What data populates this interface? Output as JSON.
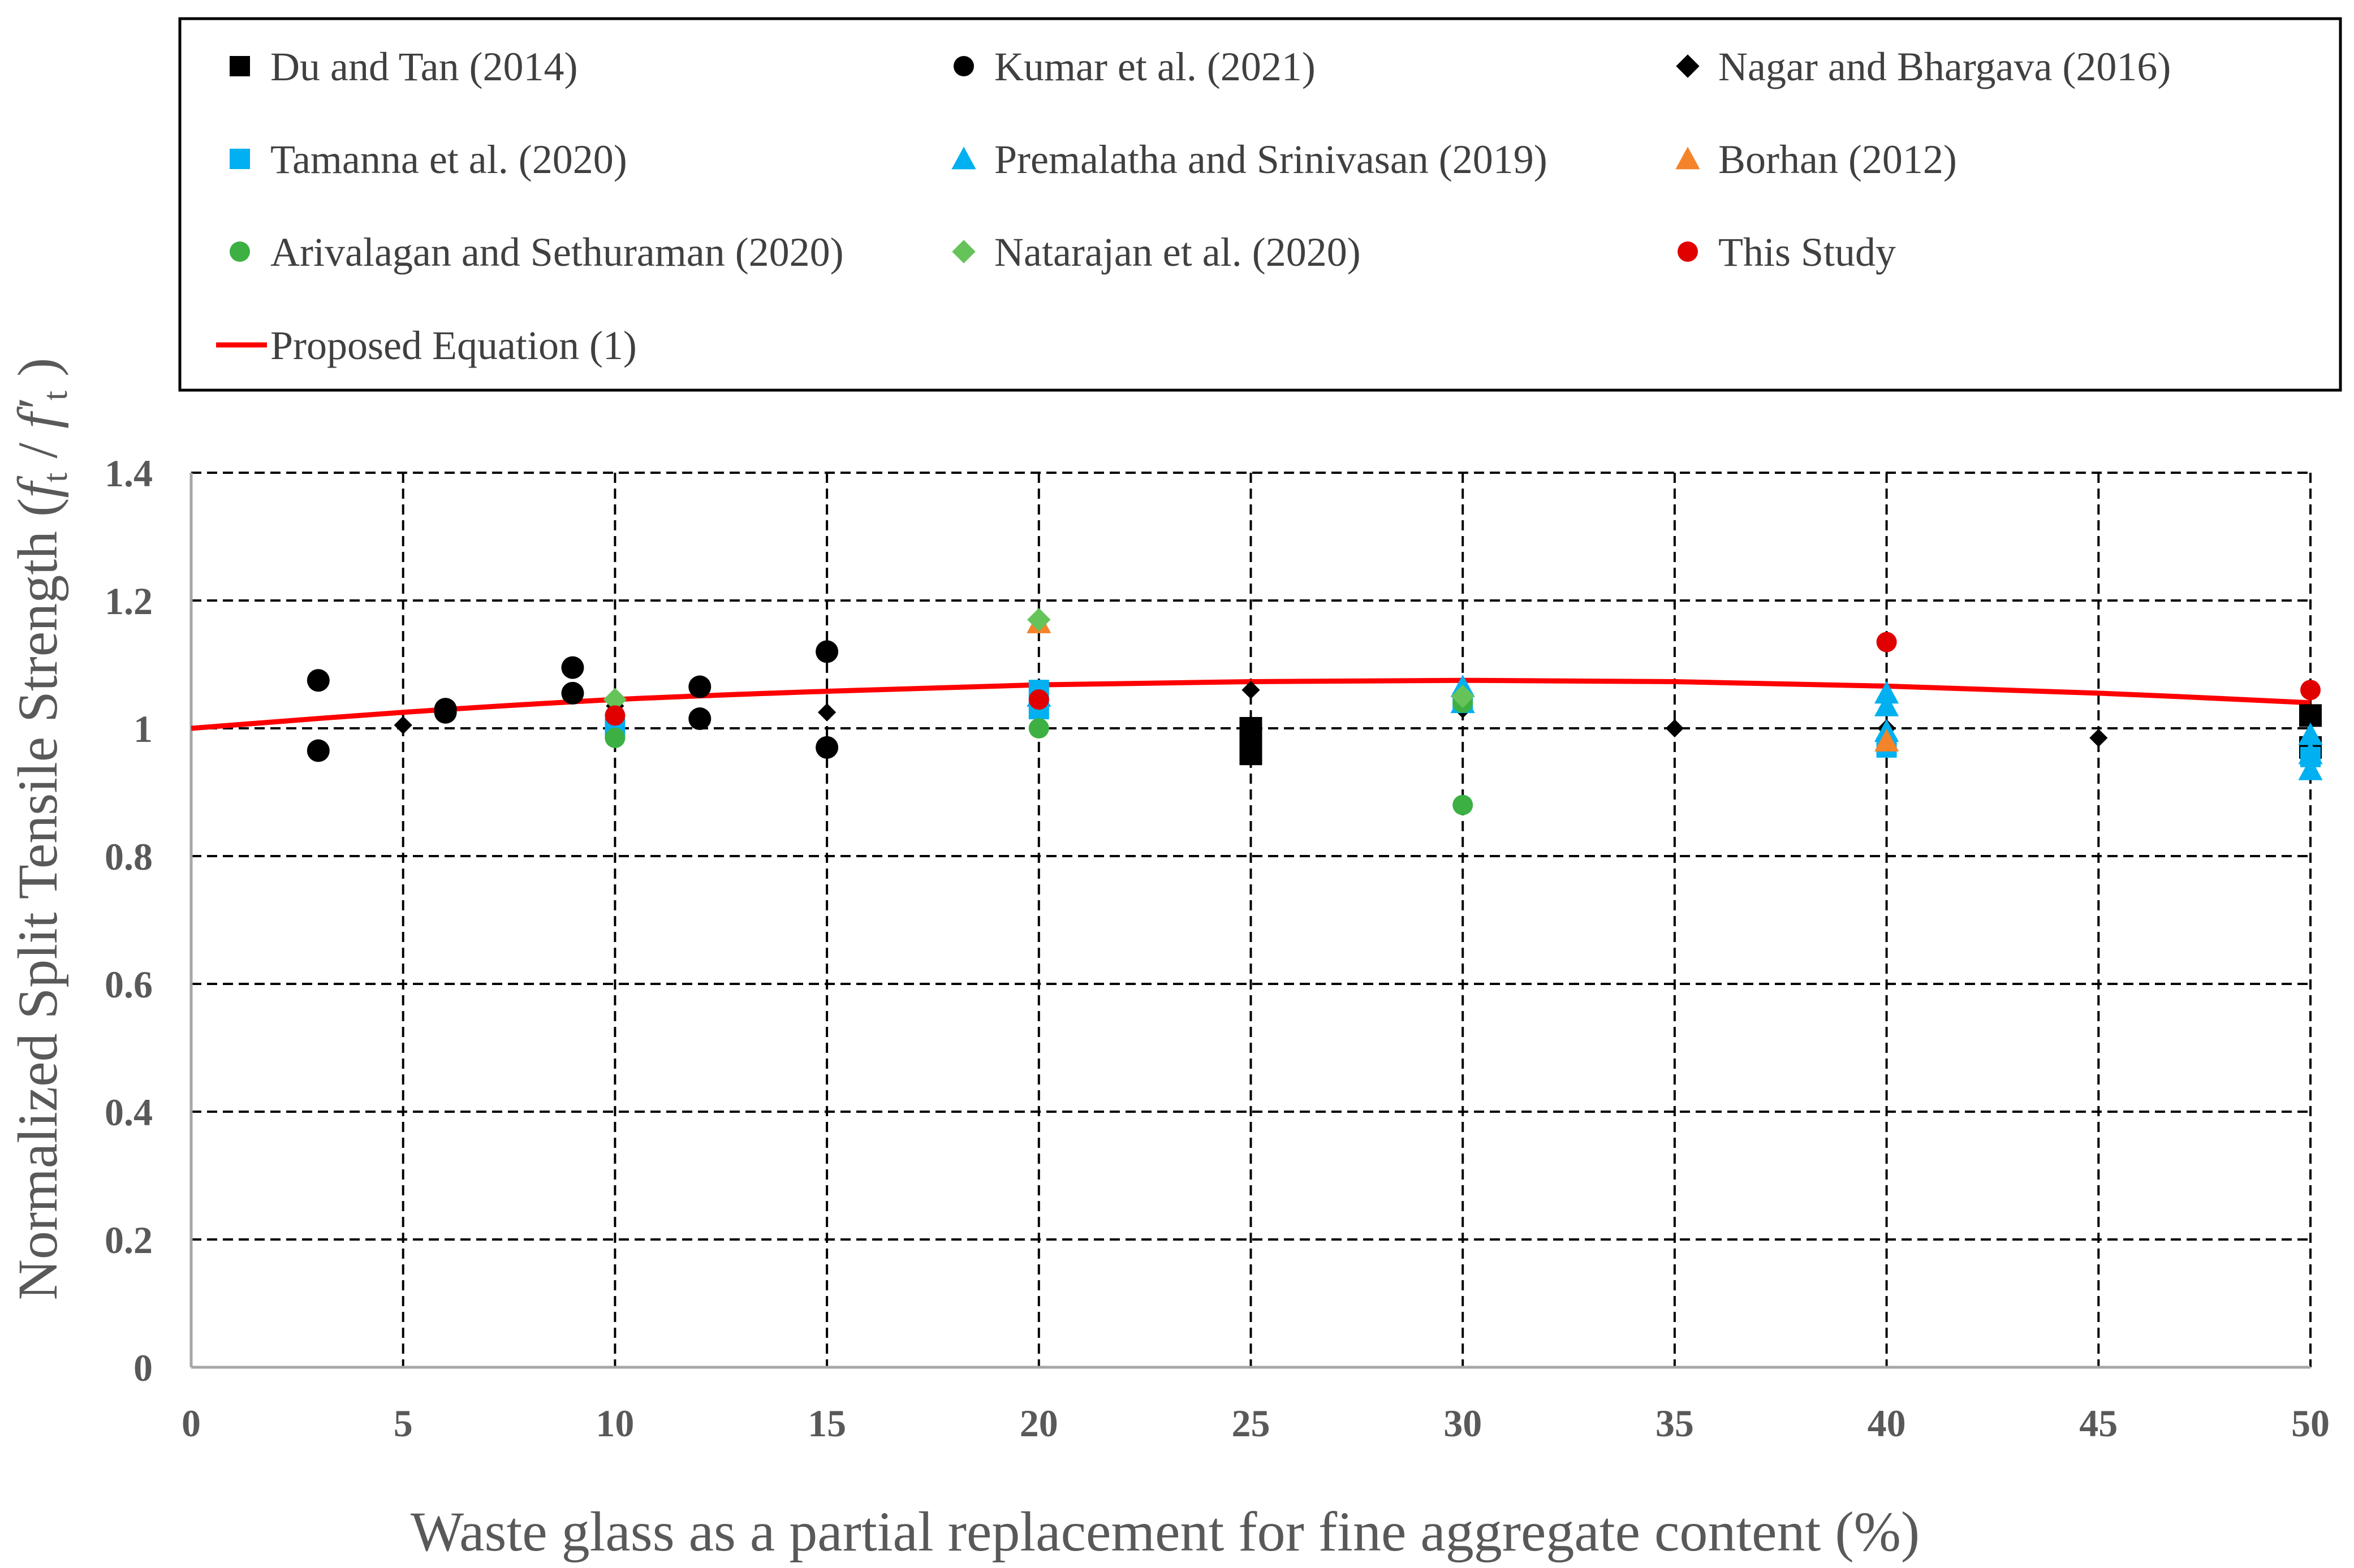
{
  "chart_data": {
    "type": "scatter",
    "xlabel": "Waste glass as a partial replacement for fine aggregate content (%)",
    "ylabel_main": "Normalized Split Tensile Strength (",
    "ylabel_f1": "f",
    "ylabel_sub1": "t",
    "ylabel_slash": " / ",
    "ylabel_f2": "f′",
    "ylabel_sub2": "t",
    "ylabel_close": " )",
    "xlim": [
      0,
      50
    ],
    "ylim": [
      0,
      1.4
    ],
    "x_ticks": [
      0,
      5,
      10,
      15,
      20,
      25,
      30,
      35,
      40,
      45,
      50
    ],
    "y_ticks": [
      0,
      0.2,
      0.4,
      0.6,
      0.8,
      1,
      1.2,
      1.4
    ],
    "x_tick_labels": [
      "0",
      "5",
      "10",
      "15",
      "20",
      "25",
      "30",
      "35",
      "40",
      "45",
      "50"
    ],
    "y_tick_labels": [
      "0",
      "0.2",
      "0.4",
      "0.6",
      "0.8",
      "1",
      "1.2",
      "1.4"
    ],
    "grid": "dashed",
    "legend_position": "top",
    "series": [
      {
        "name": "Du and Tan (2014)",
        "marker": "square",
        "color": "#000000",
        "size": "large",
        "points": [
          [
            25,
            1.0
          ],
          [
            25,
            0.98
          ],
          [
            25,
            0.96
          ],
          [
            50,
            1.02
          ],
          [
            50,
            0.97
          ]
        ]
      },
      {
        "name": "Kumar et al. (2021)",
        "marker": "circle",
        "color": "#000000",
        "size": "large",
        "points": [
          [
            3,
            1.075
          ],
          [
            3,
            0.965
          ],
          [
            6,
            1.03
          ],
          [
            6,
            1.025
          ],
          [
            9,
            1.095
          ],
          [
            9,
            1.055
          ],
          [
            12,
            1.065
          ],
          [
            12,
            1.015
          ],
          [
            15,
            1.12
          ],
          [
            15,
            0.97
          ]
        ]
      },
      {
        "name": "Nagar and Bhargava (2016)",
        "marker": "diamond",
        "color": "#000000",
        "size": "small",
        "points": [
          [
            5,
            1.005
          ],
          [
            10,
            1.035
          ],
          [
            15,
            1.025
          ],
          [
            20,
            1.045
          ],
          [
            25,
            1.06
          ],
          [
            30,
            1.03
          ],
          [
            35,
            1.0
          ],
          [
            40,
            1.0
          ],
          [
            45,
            0.985
          ]
        ]
      },
      {
        "name": "Tamanna et al. (2020)",
        "marker": "square",
        "color": "#00B0F0",
        "size": "medium",
        "points": [
          [
            10,
            1.0
          ],
          [
            20,
            1.06
          ],
          [
            20,
            1.03
          ],
          [
            30,
            1.04
          ],
          [
            40,
            0.97
          ],
          [
            50,
            0.955
          ]
        ]
      },
      {
        "name": "Premalatha and Srinivasan (2019)",
        "marker": "triangle",
        "color": "#00B0F0",
        "size": "medium",
        "points": [
          [
            20,
            1.05
          ],
          [
            30,
            1.065
          ],
          [
            30,
            1.04
          ],
          [
            40,
            1.055
          ],
          [
            40,
            1.035
          ],
          [
            40,
            0.995
          ],
          [
            50,
            0.99
          ],
          [
            50,
            0.96
          ],
          [
            50,
            0.935
          ]
        ]
      },
      {
        "name": "Borhan (2012)",
        "marker": "triangle",
        "color": "#F4832A",
        "size": "medium",
        "points": [
          [
            20,
            1.165
          ],
          [
            40,
            0.98
          ]
        ]
      },
      {
        "name": "Arivalagan and Sethuraman (2020)",
        "marker": "circle",
        "color": "#3CB043",
        "size": "medium",
        "points": [
          [
            10,
            0.985
          ],
          [
            20,
            1.0
          ],
          [
            30,
            0.88
          ],
          [
            30,
            1.04
          ]
        ]
      },
      {
        "name": "Natarajan et al. (2020)",
        "marker": "diamond",
        "color": "#66C35A",
        "size": "medium",
        "points": [
          [
            10,
            1.045
          ],
          [
            20,
            1.17
          ],
          [
            30,
            1.05
          ]
        ]
      },
      {
        "name": "This Study",
        "marker": "circle",
        "color": "#E00000",
        "size": "medium",
        "points": [
          [
            10,
            1.02
          ],
          [
            20,
            1.045
          ],
          [
            40,
            1.135
          ],
          [
            50,
            1.06
          ]
        ]
      }
    ],
    "line_series": [
      {
        "name": "Proposed Equation (1)",
        "color": "#FF0000",
        "x": [
          0,
          5,
          10,
          15,
          20,
          25,
          30,
          35,
          40,
          45,
          50
        ],
        "y": [
          1.0,
          1.025,
          1.045,
          1.058,
          1.068,
          1.073,
          1.075,
          1.073,
          1.066,
          1.055,
          1.04
        ]
      }
    ]
  }
}
